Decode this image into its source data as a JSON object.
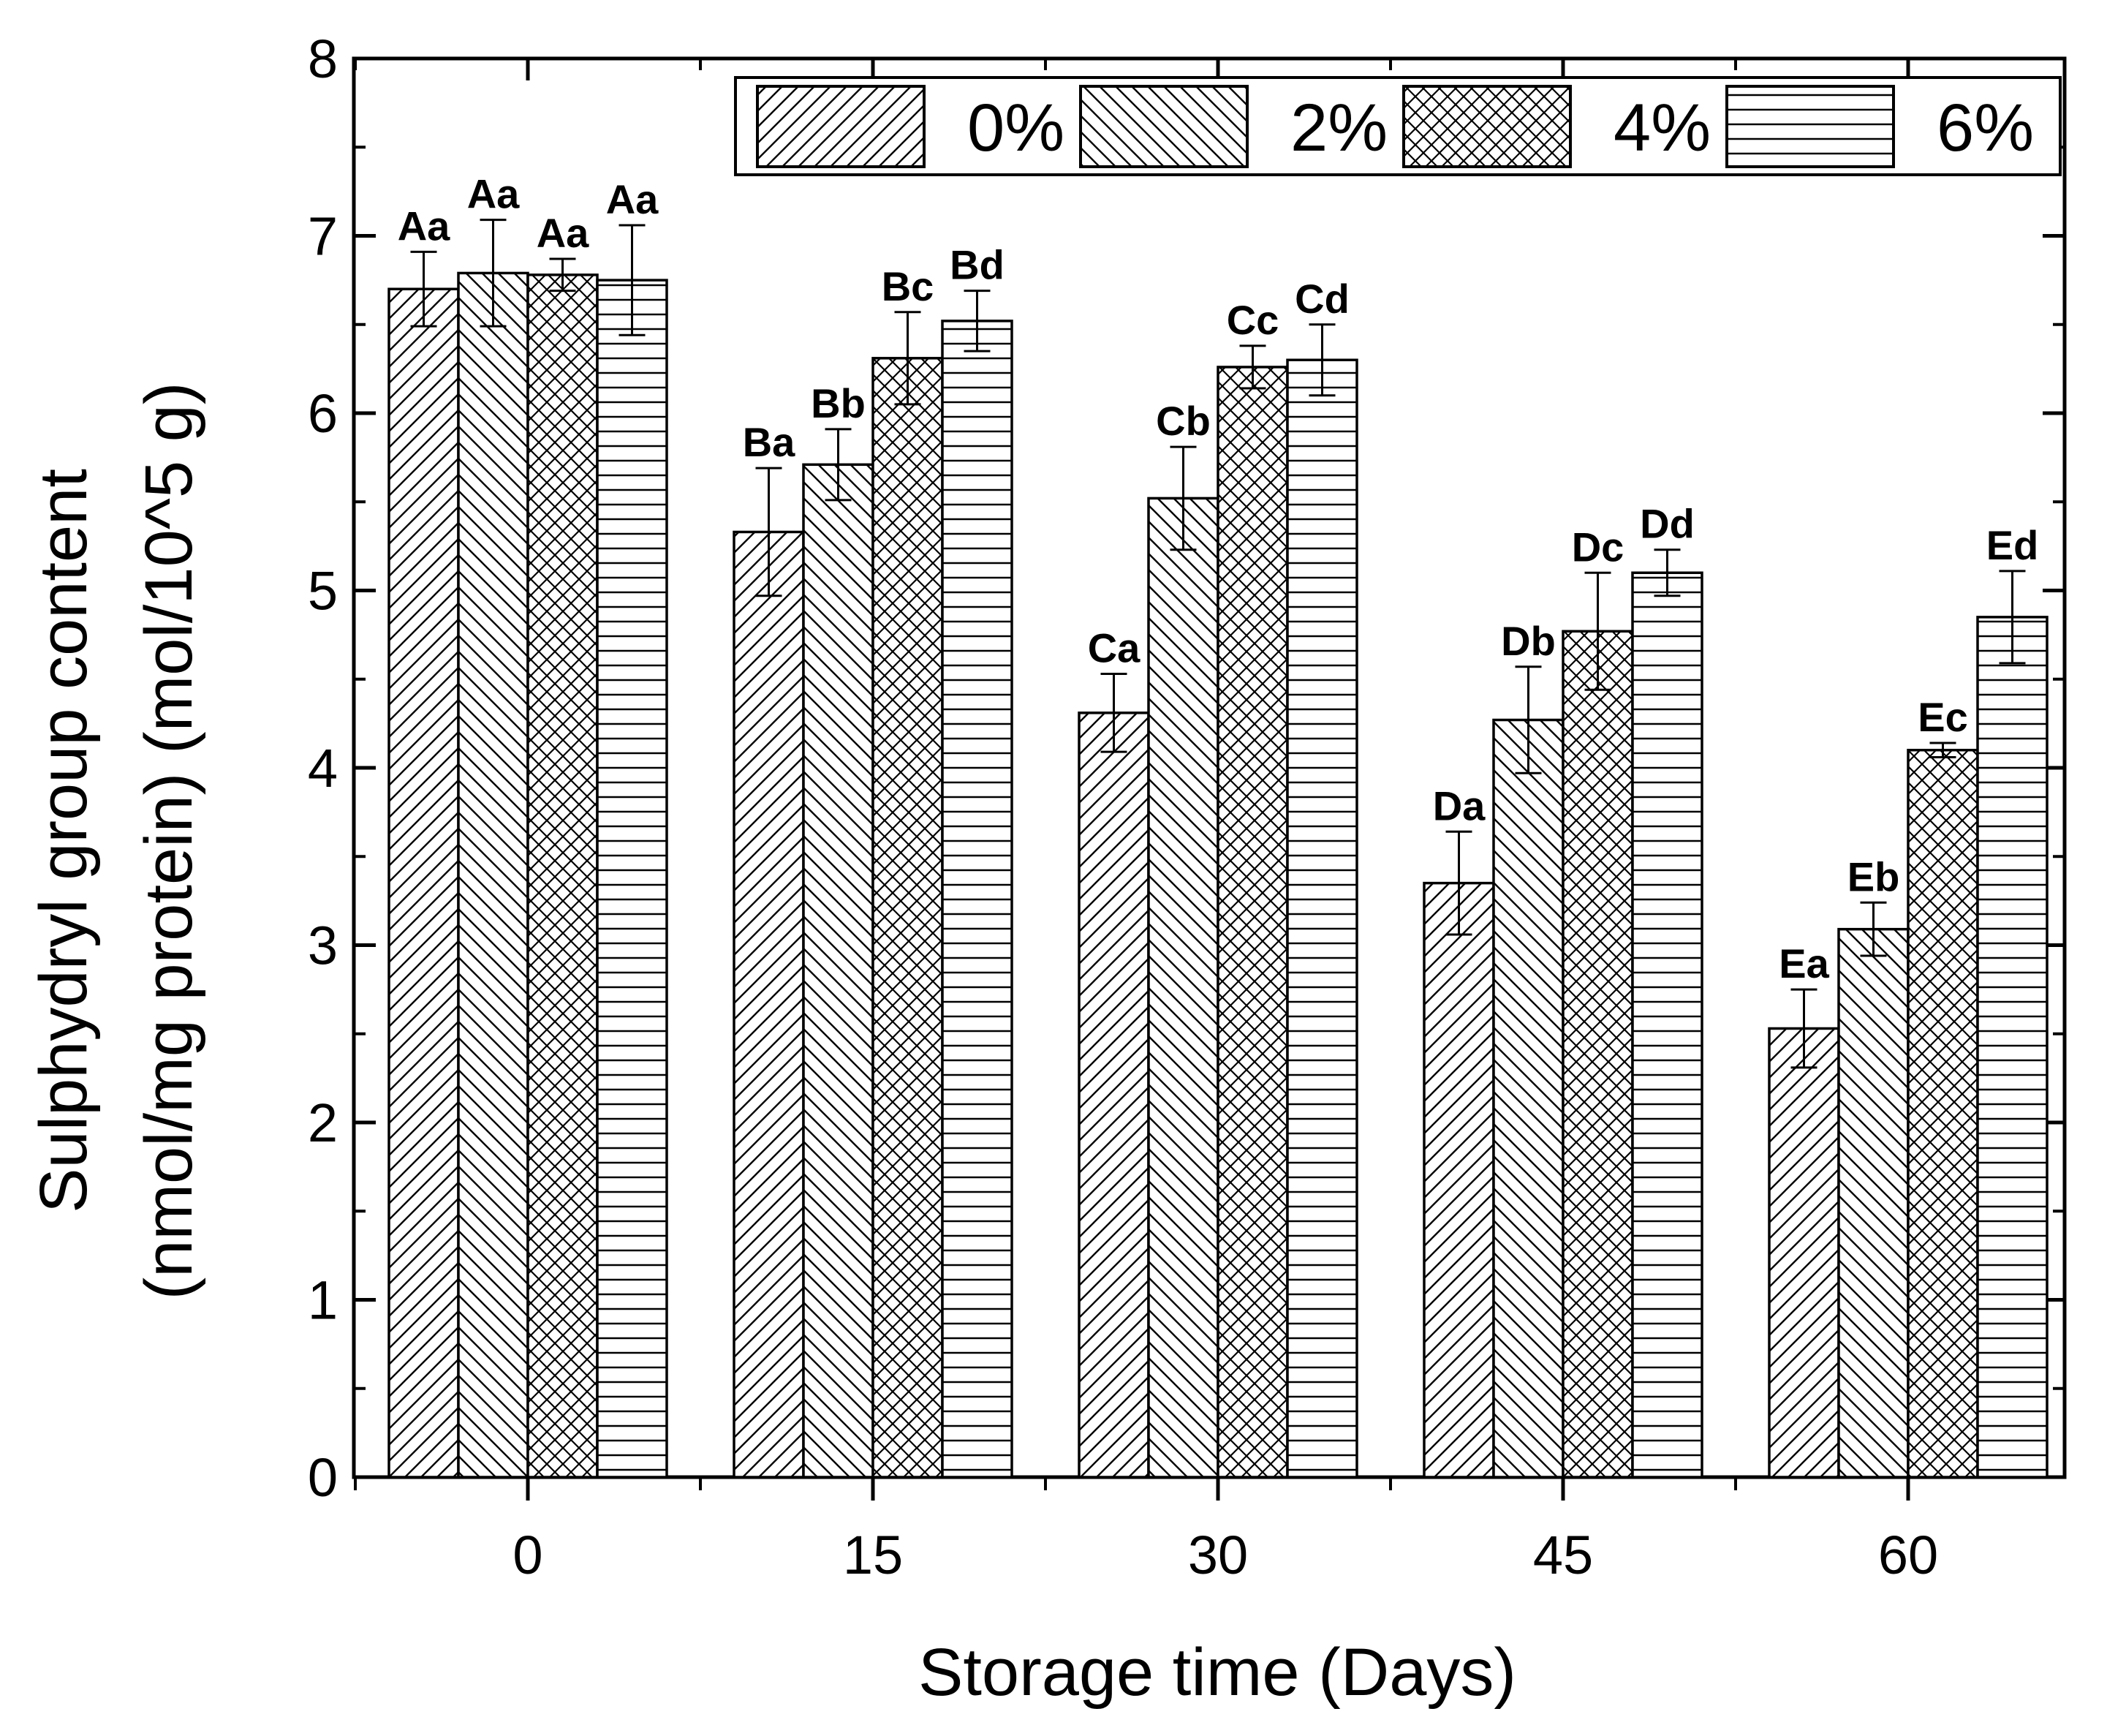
{
  "chart_data": {
    "type": "bar",
    "title": "",
    "xlabel": "Storage time (Days)",
    "ylabel_line1": "Sulphydryl group content",
    "ylabel_line2": "(nmol/mg protein) (mol/10^5 g)",
    "ylim": [
      0,
      8
    ],
    "yticks": [
      "0",
      "1",
      "2",
      "3",
      "4",
      "5",
      "6",
      "7",
      "8"
    ],
    "categories": [
      "0",
      "15",
      "30",
      "45",
      "60"
    ],
    "legend_position": "top-right",
    "series": [
      {
        "name": "0%",
        "pattern": "diag-fwd",
        "values": [
          6.7,
          5.33,
          4.31,
          3.35,
          2.53
        ],
        "errors": [
          0.21,
          0.36,
          0.22,
          0.29,
          0.22
        ],
        "labels": [
          "Aa",
          "Ba",
          "Ca",
          "Da",
          "Ea"
        ]
      },
      {
        "name": "2%",
        "pattern": "diag-back",
        "values": [
          6.79,
          5.71,
          5.52,
          4.27,
          3.09
        ],
        "errors": [
          0.3,
          0.2,
          0.29,
          0.3,
          0.15
        ],
        "labels": [
          "Aa",
          "Bb",
          "Cb",
          "Db",
          "Eb"
        ]
      },
      {
        "name": "4%",
        "pattern": "crosshatch",
        "values": [
          6.78,
          6.31,
          6.26,
          4.77,
          4.1
        ],
        "errors": [
          0.09,
          0.26,
          0.12,
          0.33,
          0.04
        ],
        "labels": [
          "Aa",
          "Bc",
          "Cc",
          "Dc",
          "Ec"
        ]
      },
      {
        "name": "6%",
        "pattern": "horizontal",
        "values": [
          6.75,
          6.52,
          6.3,
          5.1,
          4.85
        ],
        "errors": [
          0.31,
          0.17,
          0.2,
          0.13,
          0.26
        ],
        "labels": [
          "Aa",
          "Bd",
          "Cd",
          "Dd",
          "Ed"
        ]
      }
    ]
  }
}
